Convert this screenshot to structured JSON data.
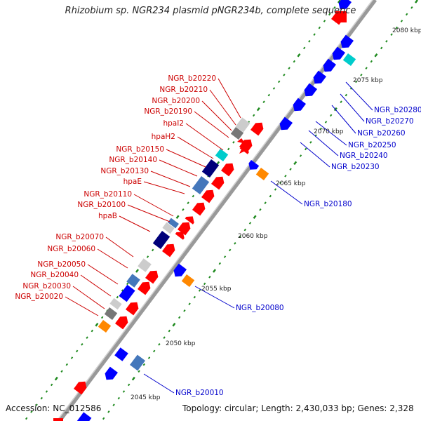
{
  "title": "Rhizobium sp. NGR234 plasmid pNGR234b, complete sequence",
  "footer": {
    "accession": "Accession: NC_012586",
    "summary": "Topology: circular; Length: 2,430,033 bp; Genes: 2,328"
  },
  "colors": {
    "backbone": "#999999",
    "ruler": "#1f8a1f",
    "red_label": "#cc0000",
    "blue_label": "#0000cc",
    "cds_forward": "#ff0000",
    "cds_reverse": "#0000ff",
    "gene_orange": "#ff8800",
    "gene_cyan": "#00cccc",
    "gene_grey": "#777777",
    "gene_light": "#cccccc",
    "gene_steel": "#4477bb",
    "gene_navy": "#00007a"
  },
  "kbp_marks": [
    "2045 kbp",
    "2050 kbp",
    "2055 kbp",
    "2060 kbp",
    "2065 kbp",
    "2070 kbp",
    "2075 kbp",
    "2080 kbp"
  ],
  "red_labels": [
    "NGR_b20220",
    "NGR_b20210",
    "NGR_b20200",
    "NGR_b20190",
    "hpaI2",
    "hpaH2",
    "NGR_b20150",
    "NGR_b20140",
    "NGR_b20130",
    "hpaE",
    "NGR_b20110",
    "NGR_b20100",
    "hpaB",
    "NGR_b20070",
    "NGR_b20060",
    "NGR_b20050",
    "NGR_b20040",
    "NGR_b20030",
    "NGR_b20020"
  ],
  "blue_labels": [
    "NGR_b20280",
    "NGR_b20270",
    "NGR_b20260",
    "NGR_b20250",
    "NGR_b20240",
    "NGR_b20230",
    "NGR_b20180",
    "NGR_b20080",
    "NGR_b20010"
  ]
}
